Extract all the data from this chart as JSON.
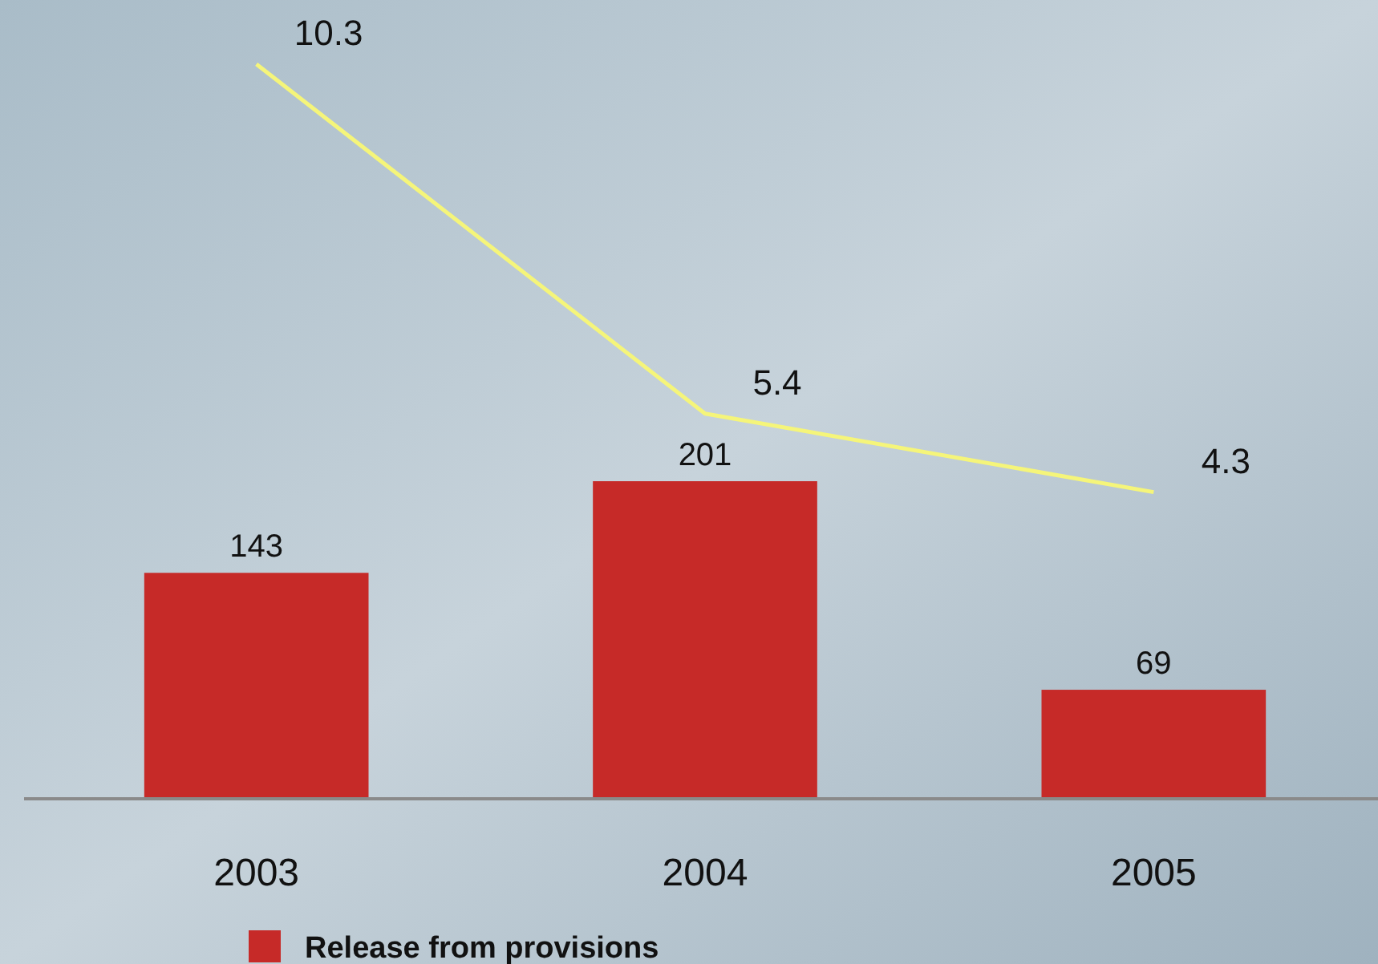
{
  "chart_data": {
    "type": "bar",
    "categories": [
      "2003",
      "2004",
      "2005"
    ],
    "series": [
      {
        "name": "Release from provisions",
        "color": "#c62a28",
        "values": [
          143,
          201,
          69
        ]
      },
      {
        "type": "line",
        "axis": "y2",
        "color": "#f5f57a",
        "values": [
          10.3,
          5.4,
          4.3
        ]
      }
    ],
    "data_labels": true,
    "legend": "bottom"
  }
}
